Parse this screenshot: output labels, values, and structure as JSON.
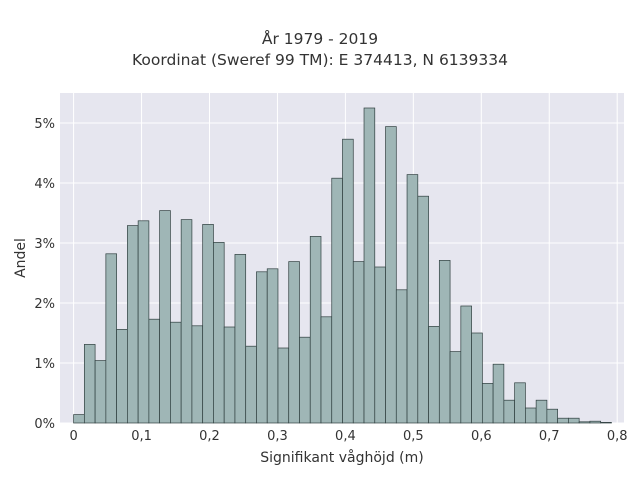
{
  "chart_data": {
    "type": "bar",
    "title": "År 1979 - 2019",
    "subtitle": "Koordinat (Sweref 99 TM): E 374413, N 6139334",
    "xlabel": "Signifikant våghöjd (m)",
    "ylabel": "Andel",
    "xlim": [
      -0.02,
      0.81
    ],
    "ylim": [
      0,
      5.5
    ],
    "x_ticks": [
      0,
      0.1,
      0.2,
      0.3,
      0.4,
      0.5,
      0.6,
      0.7,
      0.8
    ],
    "x_tick_labels": [
      "0",
      "0,1",
      "0,2",
      "0,3",
      "0,4",
      "0,5",
      "0,6",
      "0,7",
      "0,8"
    ],
    "y_ticks": [
      0,
      1,
      2,
      3,
      4,
      5
    ],
    "y_tick_labels": [
      "0%",
      "1%",
      "2%",
      "3%",
      "4%",
      "5%"
    ],
    "bin_width": 0.01583,
    "bin_starts": [
      0,
      0.01583,
      0.03166,
      0.04749,
      0.06332,
      0.07915,
      0.09498,
      0.11081,
      0.12664,
      0.14247,
      0.1583,
      0.17413,
      0.18996,
      0.20579,
      0.22162,
      0.23745,
      0.25328,
      0.26911,
      0.28494,
      0.30077,
      0.3166,
      0.33243,
      0.34826,
      0.36409,
      0.37992,
      0.39575,
      0.41158,
      0.42741,
      0.44324,
      0.45907,
      0.4749,
      0.49073,
      0.50656,
      0.52239,
      0.53822,
      0.55405,
      0.56988,
      0.58571,
      0.60154,
      0.61737,
      0.6332,
      0.64903,
      0.66486,
      0.68069,
      0.69652,
      0.71235,
      0.72818,
      0.74401,
      0.75984,
      0.77567
    ],
    "values": [
      0.14,
      1.31,
      1.04,
      2.82,
      1.56,
      3.29,
      3.37,
      1.73,
      3.54,
      1.68,
      3.39,
      1.62,
      3.31,
      3.01,
      1.6,
      2.81,
      1.28,
      2.52,
      2.57,
      1.25,
      2.69,
      1.43,
      3.11,
      1.77,
      4.08,
      4.73,
      2.69,
      5.25,
      2.6,
      4.94,
      2.22,
      4.14,
      3.78,
      1.61,
      2.71,
      1.19,
      1.95,
      1.5,
      0.66,
      0.98,
      0.38,
      0.67,
      0.25,
      0.38,
      0.23,
      0.08,
      0.08,
      0.02,
      0.03,
      0.01
    ],
    "bar_color": "#9fb6b6",
    "bar_edge_color": "#2f3f3f",
    "background": "#e6e6ef",
    "grid": true,
    "legend": false
  }
}
